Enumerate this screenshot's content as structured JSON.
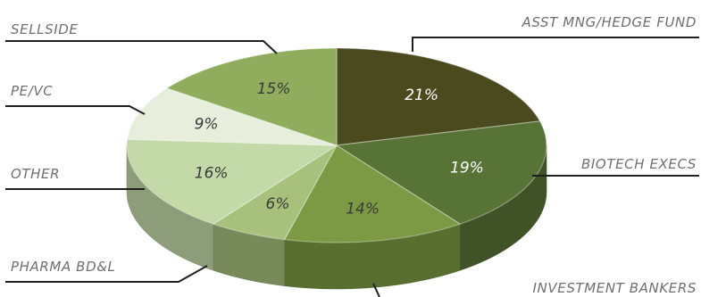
{
  "chart_data": {
    "type": "pie",
    "title": "",
    "slices": [
      {
        "label": "ASST MNG/HEDGE FUND",
        "value": 21,
        "value_label": "21%",
        "color": "#4a4a1e"
      },
      {
        "label": "BIOTECH EXECS",
        "value": 19,
        "value_label": "19%",
        "color": "#587336"
      },
      {
        "label": "INVESTMENT BANKERS",
        "value": 14,
        "value_label": "14%",
        "color": "#7b9a43"
      },
      {
        "label": "PHARMA BD&L",
        "value": 6,
        "value_label": "6%",
        "color": "#a7c07c"
      },
      {
        "label": "OTHER",
        "value": 16,
        "value_label": "16%",
        "color": "#c4d9a8"
      },
      {
        "label": "PE/VC",
        "value": 9,
        "value_label": "9%",
        "color": "#e7eedb"
      },
      {
        "label": "SELLSIDE",
        "value": 15,
        "value_label": "15%",
        "color": "#8fad5c"
      }
    ]
  }
}
